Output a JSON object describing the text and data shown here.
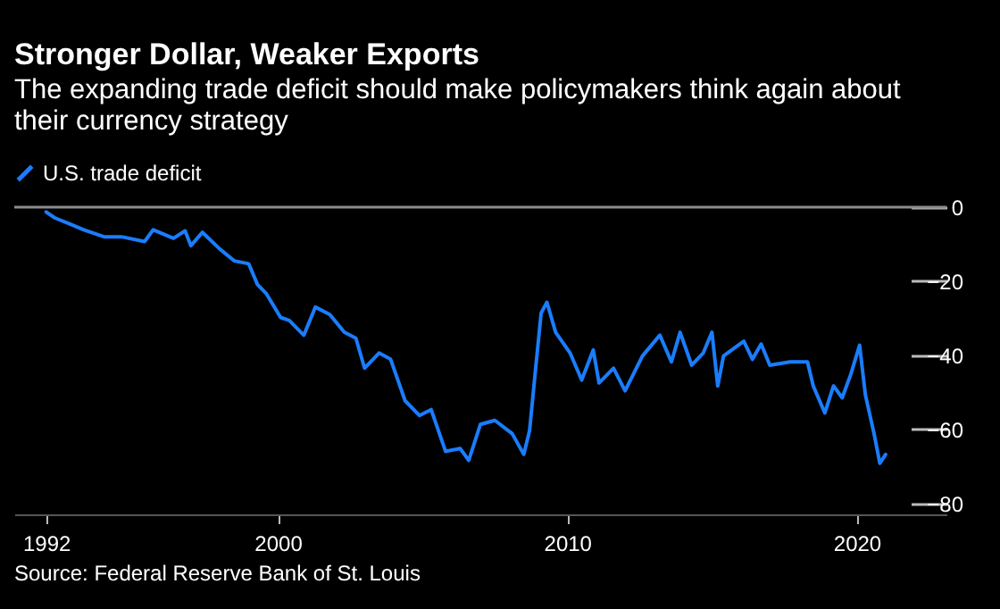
{
  "chart_data": {
    "type": "line",
    "title": "Stronger Dollar, Weaker Exports",
    "subtitle": "The expanding trade deficit should make policymakers think again about their currency strategy",
    "series": [
      {
        "name": "U.S. trade deficit",
        "color": "#1a7dff",
        "x": [
          1992.0,
          1992.3,
          1992.9,
          1993.3,
          1994.0,
          1994.6,
          1995.4,
          1995.7,
          1996.4,
          1996.8,
          1997.0,
          1997.4,
          1998.0,
          1998.5,
          1999.0,
          1999.3,
          1999.6,
          2000.1,
          2000.4,
          2000.9,
          2001.3,
          2001.8,
          2002.3,
          2002.7,
          2003.0,
          2003.5,
          2003.9,
          2004.4,
          2004.9,
          2005.3,
          2005.8,
          2006.3,
          2006.6,
          2007.0,
          2007.5,
          2008.1,
          2008.5,
          2008.7,
          2008.9,
          2009.1,
          2009.3,
          2009.6,
          2010.1,
          2010.5,
          2010.9,
          2011.1,
          2011.6,
          2012.0,
          2012.6,
          2013.2,
          2013.6,
          2013.9,
          2014.3,
          2014.7,
          2015.0,
          2015.2,
          2015.4,
          2016.1,
          2016.4,
          2016.7,
          2017.0,
          2017.7,
          2018.3,
          2018.5,
          2018.9,
          2019.2,
          2019.5,
          2019.8,
          2020.1,
          2020.3,
          2020.6,
          2020.8,
          2021.0
        ],
        "values": [
          -1.3,
          -2.9,
          -4.8,
          -6.1,
          -8.0,
          -8.0,
          -9.3,
          -6.1,
          -8.4,
          -6.4,
          -10.4,
          -6.8,
          -11.3,
          -14.5,
          -15.3,
          -20.9,
          -23.3,
          -29.8,
          -30.6,
          -34.6,
          -27.0,
          -29.0,
          -33.8,
          -35.4,
          -43.5,
          -39.4,
          -41.1,
          -52.3,
          -56.3,
          -54.7,
          -66.0,
          -65.2,
          -68.4,
          -58.7,
          -57.6,
          -61.2,
          -66.8,
          -60.4,
          -44.3,
          -28.6,
          -25.7,
          -33.8,
          -39.4,
          -46.7,
          -38.6,
          -47.5,
          -43.5,
          -49.6,
          -40.2,
          -34.6,
          -41.8,
          -33.8,
          -42.7,
          -39.4,
          -33.8,
          -48.3,
          -40.2,
          -36.2,
          -41.1,
          -37.0,
          -42.7,
          -41.8,
          -41.8,
          -48.3,
          -55.6,
          -48.3,
          -51.5,
          -45.1,
          -37.3,
          -50.7,
          -61.2,
          -69.2,
          -66.8
        ]
      }
    ],
    "xlim": [
      1990.9,
      2023.1
    ],
    "ylim": [
      -83,
      0
    ],
    "xticks": [
      1992,
      2000,
      2010,
      2020
    ],
    "yticks": [
      0,
      -20,
      -40,
      -60,
      -80
    ],
    "ref_lines": [
      {
        "axis": "y",
        "value": 0,
        "color": "#8c8c8c"
      }
    ],
    "legend": "top left",
    "annotations": [
      "Source: Federal Reserve Bank of St. Louis"
    ]
  }
}
